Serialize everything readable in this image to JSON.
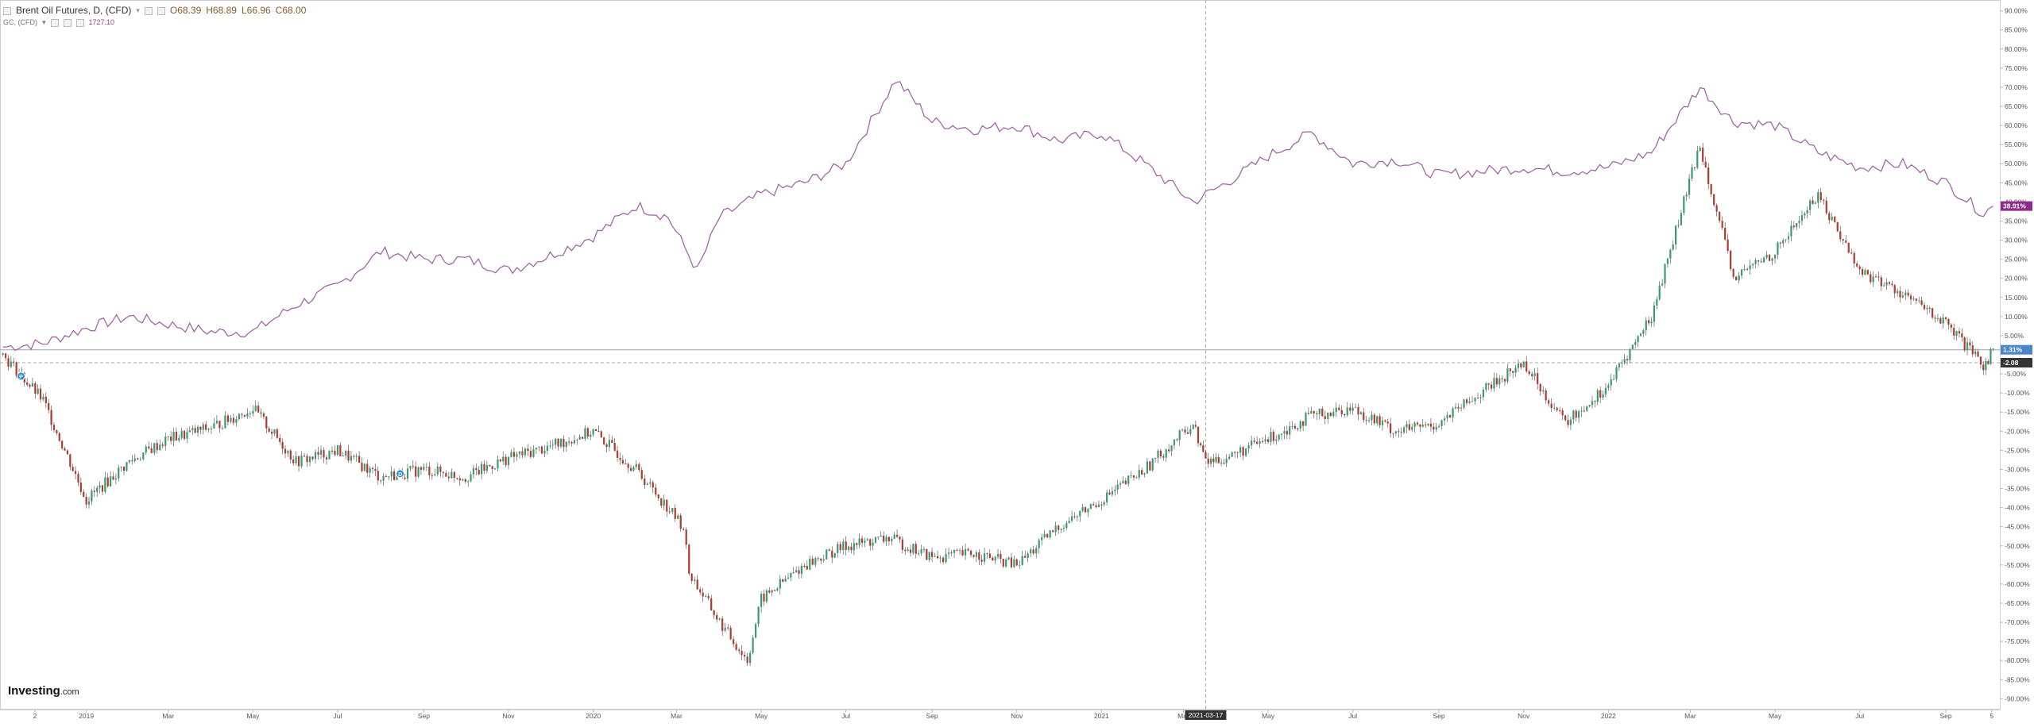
{
  "header": {
    "symbol_title": "Brent Oil Futures, D, (CFD)",
    "ohlc": {
      "open": "O68.39",
      "high": "H68.89",
      "low": "L66.96",
      "close": "C68.00"
    },
    "compare_symbol": "GC, (CFD)",
    "compare_value": "1727.10"
  },
  "brand": {
    "name": "Investing",
    "suffix": ".com"
  },
  "crosshair": {
    "date_label": "2021-03-17"
  },
  "price_badges": {
    "gold": "38.91%",
    "brent": "1.31%",
    "brent2": "-2.08"
  },
  "colors": {
    "gold_line": "#a05aa6",
    "up_candle": "#3a9a72",
    "down_candle": "#b03a2e",
    "badge_gold": "#8e2a8c",
    "badge_brent": "#4a86c8",
    "badge_dark": "#333333"
  },
  "chart_data": {
    "type": "line",
    "x_axis_labels": [
      "2",
      "2019",
      "Mar",
      "May",
      "Jul",
      "Sep",
      "Nov",
      "2020",
      "Mar",
      "May",
      "Jul",
      "Sep",
      "Nov",
      "2021",
      "Mar",
      "May",
      "Jul",
      "Sep",
      "Nov",
      "2022",
      "Mar",
      "May",
      "Jul",
      "Sep",
      "5"
    ],
    "y_axis_labels": [
      "90.00%",
      "85.00%",
      "80.00%",
      "75.00%",
      "70.00%",
      "65.00%",
      "60.00%",
      "55.00%",
      "50.00%",
      "45.00%",
      "40.00%",
      "35.00%",
      "30.00%",
      "25.00%",
      "20.00%",
      "15.00%",
      "10.00%",
      "5.00%",
      "-5.00%",
      "-10.00%",
      "-15.00%",
      "-20.00%",
      "-25.00%",
      "-30.00%",
      "-35.00%",
      "-40.00%",
      "-45.00%",
      "-50.00%",
      "-55.00%",
      "-60.00%",
      "-65.00%",
      "-70.00%",
      "-75.00%",
      "-80.00%",
      "-85.00%",
      "-90.00%"
    ],
    "ylim": [
      -92,
      92
    ],
    "series": [
      {
        "name": "GC, (CFD)",
        "kind": "line",
        "x": [
          "2018-11-02",
          "2018-12-01",
          "2019-01-01",
          "2019-02-01",
          "2019-03-01",
          "2019-04-01",
          "2019-05-01",
          "2019-06-01",
          "2019-07-01",
          "2019-08-01",
          "2019-09-01",
          "2019-10-01",
          "2019-11-01",
          "2019-12-01",
          "2020-01-01",
          "2020-02-01",
          "2020-02-24",
          "2020-03-16",
          "2020-04-01",
          "2020-05-01",
          "2020-06-01",
          "2020-07-01",
          "2020-08-06",
          "2020-09-01",
          "2020-10-01",
          "2020-11-01",
          "2020-12-01",
          "2021-01-01",
          "2021-02-01",
          "2021-03-08",
          "2021-04-01",
          "2021-05-01",
          "2021-06-01",
          "2021-07-01",
          "2021-08-01",
          "2021-09-01",
          "2021-10-01",
          "2021-11-01",
          "2021-12-01",
          "2022-01-01",
          "2022-02-01",
          "2022-03-08",
          "2022-04-01",
          "2022-05-01",
          "2022-06-01",
          "2022-07-01",
          "2022-08-01",
          "2022-09-01",
          "2022-09-28",
          "2022-10-05"
        ],
        "y": [
          2,
          3,
          7,
          10,
          8,
          6,
          6,
          13,
          18,
          27,
          25,
          25,
          22,
          26,
          31,
          39,
          36,
          22,
          36,
          42,
          45,
          50,
          72,
          61,
          59,
          60,
          56,
          58,
          50,
          40,
          45,
          52,
          58,
          50,
          51,
          47,
          48,
          49,
          48,
          49,
          53,
          70,
          61,
          60,
          53,
          49,
          50,
          45,
          37,
          38.91
        ]
      },
      {
        "name": "Brent Oil Futures, D, (CFD)",
        "kind": "candles",
        "x": [
          "2018-11-02",
          "2018-12-01",
          "2019-01-01",
          "2019-02-01",
          "2019-03-01",
          "2019-04-01",
          "2019-05-01",
          "2019-06-01",
          "2019-07-01",
          "2019-08-01",
          "2019-09-01",
          "2019-10-01",
          "2019-11-01",
          "2019-12-01",
          "2020-01-01",
          "2020-02-01",
          "2020-03-06",
          "2020-03-10",
          "2020-04-01",
          "2020-04-21",
          "2020-05-01",
          "2020-06-01",
          "2020-07-01",
          "2020-08-01",
          "2020-09-01",
          "2020-10-01",
          "2020-11-01",
          "2020-12-01",
          "2021-01-01",
          "2021-02-01",
          "2021-03-08",
          "2021-03-17",
          "2021-04-01",
          "2021-05-01",
          "2021-06-01",
          "2021-07-01",
          "2021-08-01",
          "2021-09-01",
          "2021-10-01",
          "2021-11-01",
          "2021-12-01",
          "2022-01-01",
          "2022-02-01",
          "2022-03-08",
          "2022-04-01",
          "2022-05-01",
          "2022-06-01",
          "2022-07-01",
          "2022-08-01",
          "2022-09-01",
          "2022-09-28",
          "2022-10-05"
        ],
        "y": [
          0,
          -12,
          -38,
          -28,
          -22,
          -19,
          -14,
          -28,
          -25,
          -32,
          -30,
          -32,
          -27,
          -24,
          -20,
          -30,
          -45,
          -57,
          -70,
          -80,
          -64,
          -55,
          -50,
          -48,
          -53,
          -52,
          -55,
          -45,
          -38,
          -30,
          -18,
          -28,
          -27,
          -22,
          -16,
          -14,
          -20,
          -18,
          -10,
          -2,
          -18,
          -8,
          10,
          55,
          20,
          27,
          42,
          22,
          16,
          8,
          -3,
          1.31
        ]
      }
    ],
    "markers": [
      {
        "label": "P",
        "x": "2018-11-15"
      },
      {
        "label": "D",
        "x": "2019-08-15"
      }
    ],
    "grid": false
  }
}
